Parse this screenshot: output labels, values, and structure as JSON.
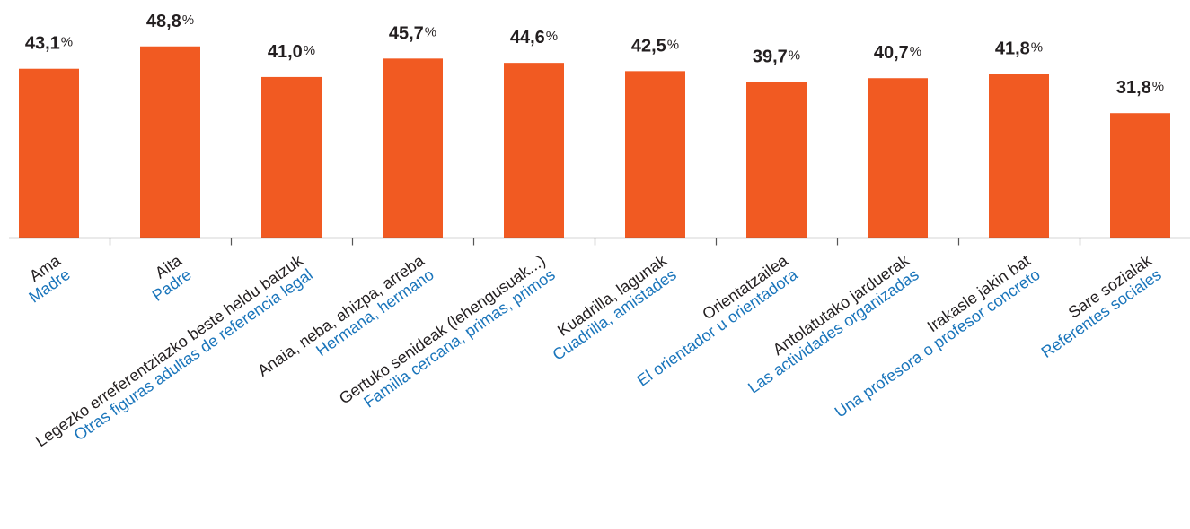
{
  "chart_data": {
    "type": "bar",
    "categories": [
      {
        "eu": "Ama",
        "es": "Madre"
      },
      {
        "eu": "Aita",
        "es": "Padre"
      },
      {
        "eu": "Legezko erreferentziazko beste heldu batzuk",
        "es": "Otras figuras adultas de referencia legal"
      },
      {
        "eu": "Anaia, neba, ahizpa, arreba",
        "es": "Hermana, hermano"
      },
      {
        "eu": "Gertuko senideak (lehengusuak...)",
        "es": "Familia cercana, primas, primos"
      },
      {
        "eu": "Kuadrilla, lagunak",
        "es": "Cuadrilla, amistades"
      },
      {
        "eu": "Orientatzailea",
        "es": "El orientador u orientadora"
      },
      {
        "eu": "Antolatutako jarduerak",
        "es": "Las actividades organizadas"
      },
      {
        "eu": "Irakasle jakin bat",
        "es": "Una profesora o profesor concreto"
      },
      {
        "eu": "Sare sozialak",
        "es": "Referentes sociales"
      }
    ],
    "values": [
      43.1,
      48.8,
      41.0,
      45.7,
      44.6,
      42.5,
      39.7,
      40.7,
      41.8,
      31.8
    ],
    "value_labels": [
      "43,1",
      "48,8",
      "41,0",
      "45,7",
      "44,6",
      "42,5",
      "39,7",
      "40,7",
      "41,8",
      "31,8"
    ],
    "unit": "%",
    "bar_color": "#f15a22",
    "eu_label_color": "#231f20",
    "es_label_color": "#1a75bb",
    "grid": false,
    "legend": "none"
  }
}
